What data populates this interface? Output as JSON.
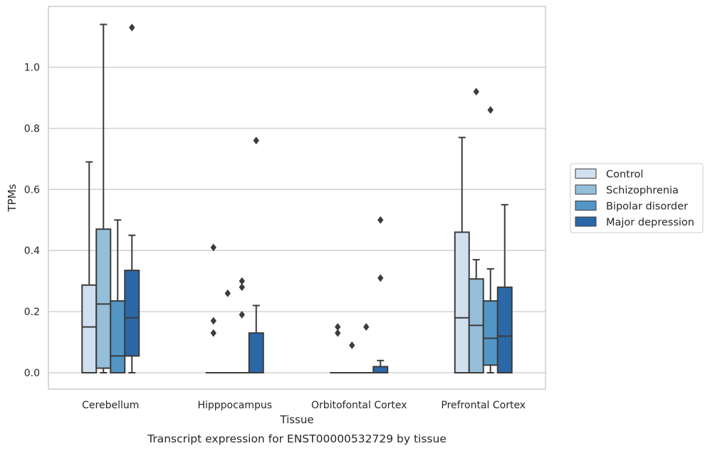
{
  "chart_data": {
    "type": "box",
    "title": "",
    "caption": "Transcript expression for ENST00000532729 by tissue",
    "xlabel": "Tissue",
    "ylabel": "TPMs",
    "ylim": [
      -0.055,
      1.2
    ],
    "yticks": [
      "0.0",
      "0.2",
      "0.4",
      "0.6",
      "0.8",
      "1.0"
    ],
    "grid": "horizontal",
    "legend_position": "right",
    "categories": [
      "Cerebellum",
      "Hipppocampus",
      "Orbitofontal Cortex",
      "Prefrontal Cortex"
    ],
    "series": [
      {
        "name": "Control",
        "color": "#d1e0ef",
        "boxes": [
          {
            "q1": 0.0,
            "median": 0.15,
            "q3": 0.287,
            "whisker_low": 0.0,
            "whisker_high": 0.69,
            "outliers": []
          },
          {
            "q1": 0.0,
            "median": 0.0,
            "q3": 0.0,
            "whisker_low": 0.0,
            "whisker_high": 0.0,
            "outliers": [
              0.41,
              0.17,
              0.13
            ]
          },
          {
            "q1": 0.0,
            "median": 0.0,
            "q3": 0.0,
            "whisker_low": 0.0,
            "whisker_high": 0.0,
            "outliers": [
              0.15,
              0.13
            ]
          },
          {
            "q1": 0.0,
            "median": 0.18,
            "q3": 0.46,
            "whisker_low": 0.0,
            "whisker_high": 0.77,
            "outliers": []
          }
        ]
      },
      {
        "name": "Schizophrenia",
        "color": "#95bed9",
        "boxes": [
          {
            "q1": 0.015,
            "median": 0.225,
            "q3": 0.47,
            "whisker_low": 0.0,
            "whisker_high": 1.14,
            "outliers": []
          },
          {
            "q1": 0.0,
            "median": 0.0,
            "q3": 0.0,
            "whisker_low": 0.0,
            "whisker_high": 0.0,
            "outliers": [
              0.26
            ]
          },
          {
            "q1": 0.0,
            "median": 0.0,
            "q3": 0.0,
            "whisker_low": 0.0,
            "whisker_high": 0.0,
            "outliers": [
              0.09
            ]
          },
          {
            "q1": 0.0,
            "median": 0.155,
            "q3": 0.307,
            "whisker_low": 0.0,
            "whisker_high": 0.37,
            "outliers": [
              0.92
            ]
          }
        ]
      },
      {
        "name": "Bipolar disorder",
        "color": "#5396c6",
        "boxes": [
          {
            "q1": 0.0,
            "median": 0.055,
            "q3": 0.235,
            "whisker_low": 0.0,
            "whisker_high": 0.5,
            "outliers": []
          },
          {
            "q1": 0.0,
            "median": 0.0,
            "q3": 0.0,
            "whisker_low": 0.0,
            "whisker_high": 0.0,
            "outliers": [
              0.3,
              0.28,
              0.19
            ]
          },
          {
            "q1": 0.0,
            "median": 0.0,
            "q3": 0.0,
            "whisker_low": 0.0,
            "whisker_high": 0.0,
            "outliers": [
              0.15
            ]
          },
          {
            "q1": 0.025,
            "median": 0.113,
            "q3": 0.235,
            "whisker_low": 0.0,
            "whisker_high": 0.34,
            "outliers": [
              0.86
            ]
          }
        ]
      },
      {
        "name": "Major depression",
        "color": "#2a68a8",
        "boxes": [
          {
            "q1": 0.055,
            "median": 0.18,
            "q3": 0.335,
            "whisker_low": 0.0,
            "whisker_high": 0.45,
            "outliers": [
              1.13
            ]
          },
          {
            "q1": 0.0,
            "median": 0.0,
            "q3": 0.13,
            "whisker_low": 0.0,
            "whisker_high": 0.22,
            "outliers": [
              0.76
            ]
          },
          {
            "q1": 0.0,
            "median": 0.0,
            "q3": 0.02,
            "whisker_low": 0.0,
            "whisker_high": 0.04,
            "outliers": [
              0.5,
              0.31
            ]
          },
          {
            "q1": 0.0,
            "median": 0.12,
            "q3": 0.28,
            "whisker_low": 0.0,
            "whisker_high": 0.55,
            "outliers": []
          }
        ]
      }
    ]
  }
}
